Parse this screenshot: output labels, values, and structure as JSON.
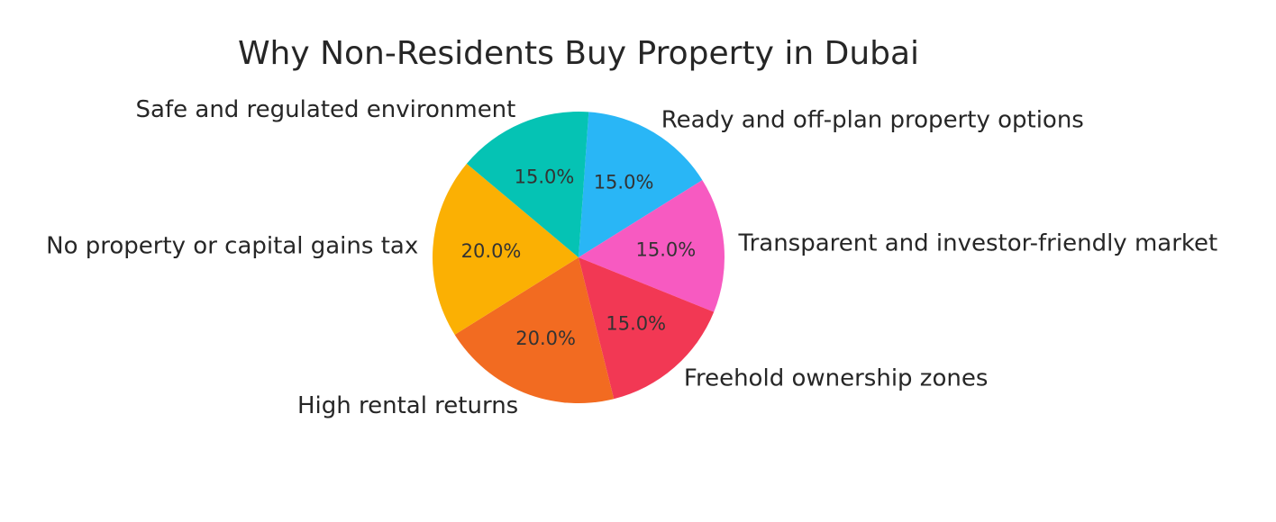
{
  "chart_data": {
    "type": "pie",
    "title": "Why Non-Residents Buy Property in Dubai",
    "start_angle_deg": 86,
    "direction": "clockwise",
    "slices": [
      {
        "label": "Ready and off-plan property options",
        "value": 15.0,
        "pct_label": "15.0%",
        "color": "#29b6f6"
      },
      {
        "label": "Transparent and investor-friendly market",
        "value": 15.0,
        "pct_label": "15.0%",
        "color": "#f75ac1"
      },
      {
        "label": "Freehold ownership zones",
        "value": 15.0,
        "pct_label": "15.0%",
        "color": "#f23854"
      },
      {
        "label": "High rental returns",
        "value": 20.0,
        "pct_label": "20.0%",
        "color": "#f26b21"
      },
      {
        "label": "No property or capital gains tax",
        "value": 20.0,
        "pct_label": "20.0%",
        "color": "#fbb003"
      },
      {
        "label": "Safe and regulated environment",
        "value": 15.0,
        "pct_label": "15.0%",
        "color": "#05c3b4"
      }
    ]
  }
}
